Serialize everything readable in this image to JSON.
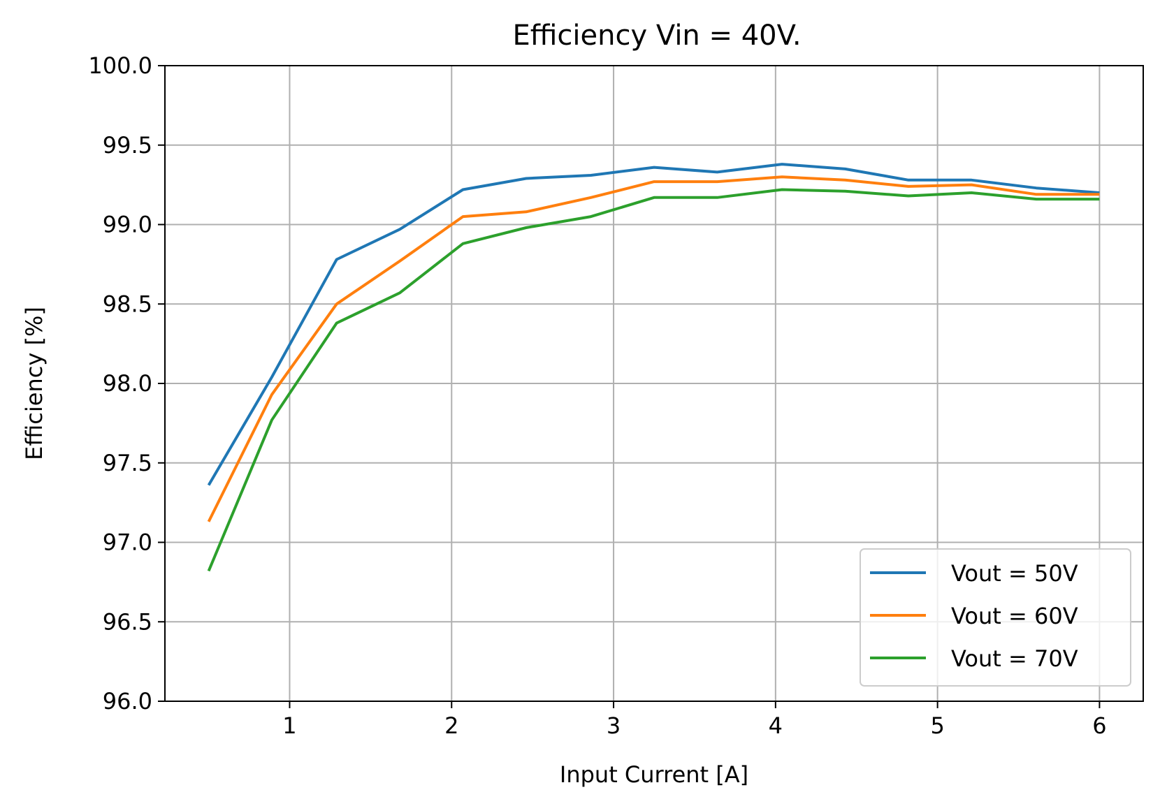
{
  "chart_data": {
    "type": "line",
    "title": "Efficiency Vin = 40V.",
    "xlabel": "Input Current [A]",
    "ylabel": "Efficiency [%]",
    "xlim": [
      0.23,
      6.27
    ],
    "ylim": [
      96.0,
      100.0
    ],
    "xticks": [
      1,
      2,
      3,
      4,
      5,
      6
    ],
    "xtick_labels": [
      "1",
      "2",
      "3",
      "4",
      "5",
      "6"
    ],
    "yticks": [
      96.0,
      96.5,
      97.0,
      97.5,
      98.0,
      98.5,
      99.0,
      99.5,
      100.0
    ],
    "ytick_labels": [
      "96.0",
      "96.5",
      "97.0",
      "97.5",
      "98.0",
      "98.5",
      "99.0",
      "99.5",
      "100.0"
    ],
    "grid": true,
    "legend_position": "bottom-right",
    "x": [
      0.5,
      0.89,
      1.29,
      1.68,
      2.07,
      2.46,
      2.86,
      3.25,
      3.64,
      4.04,
      4.43,
      4.82,
      5.21,
      5.61,
      6.0
    ],
    "series": [
      {
        "name": "Vout = 50V",
        "color": "#1f77b4",
        "values": [
          97.36,
          98.04,
          98.78,
          98.97,
          99.22,
          99.29,
          99.31,
          99.36,
          99.33,
          99.38,
          99.35,
          99.28,
          99.28,
          99.23,
          99.2
        ]
      },
      {
        "name": "Vout = 60V",
        "color": "#ff7f0e",
        "values": [
          97.13,
          97.93,
          98.5,
          98.77,
          99.05,
          99.08,
          99.17,
          99.27,
          99.27,
          99.3,
          99.28,
          99.24,
          99.25,
          99.19,
          99.19
        ]
      },
      {
        "name": "Vout = 70V",
        "color": "#2ca02c",
        "values": [
          96.82,
          97.77,
          98.38,
          98.57,
          98.88,
          98.98,
          99.05,
          99.17,
          99.17,
          99.22,
          99.21,
          99.18,
          99.2,
          99.16,
          99.16
        ]
      }
    ]
  }
}
